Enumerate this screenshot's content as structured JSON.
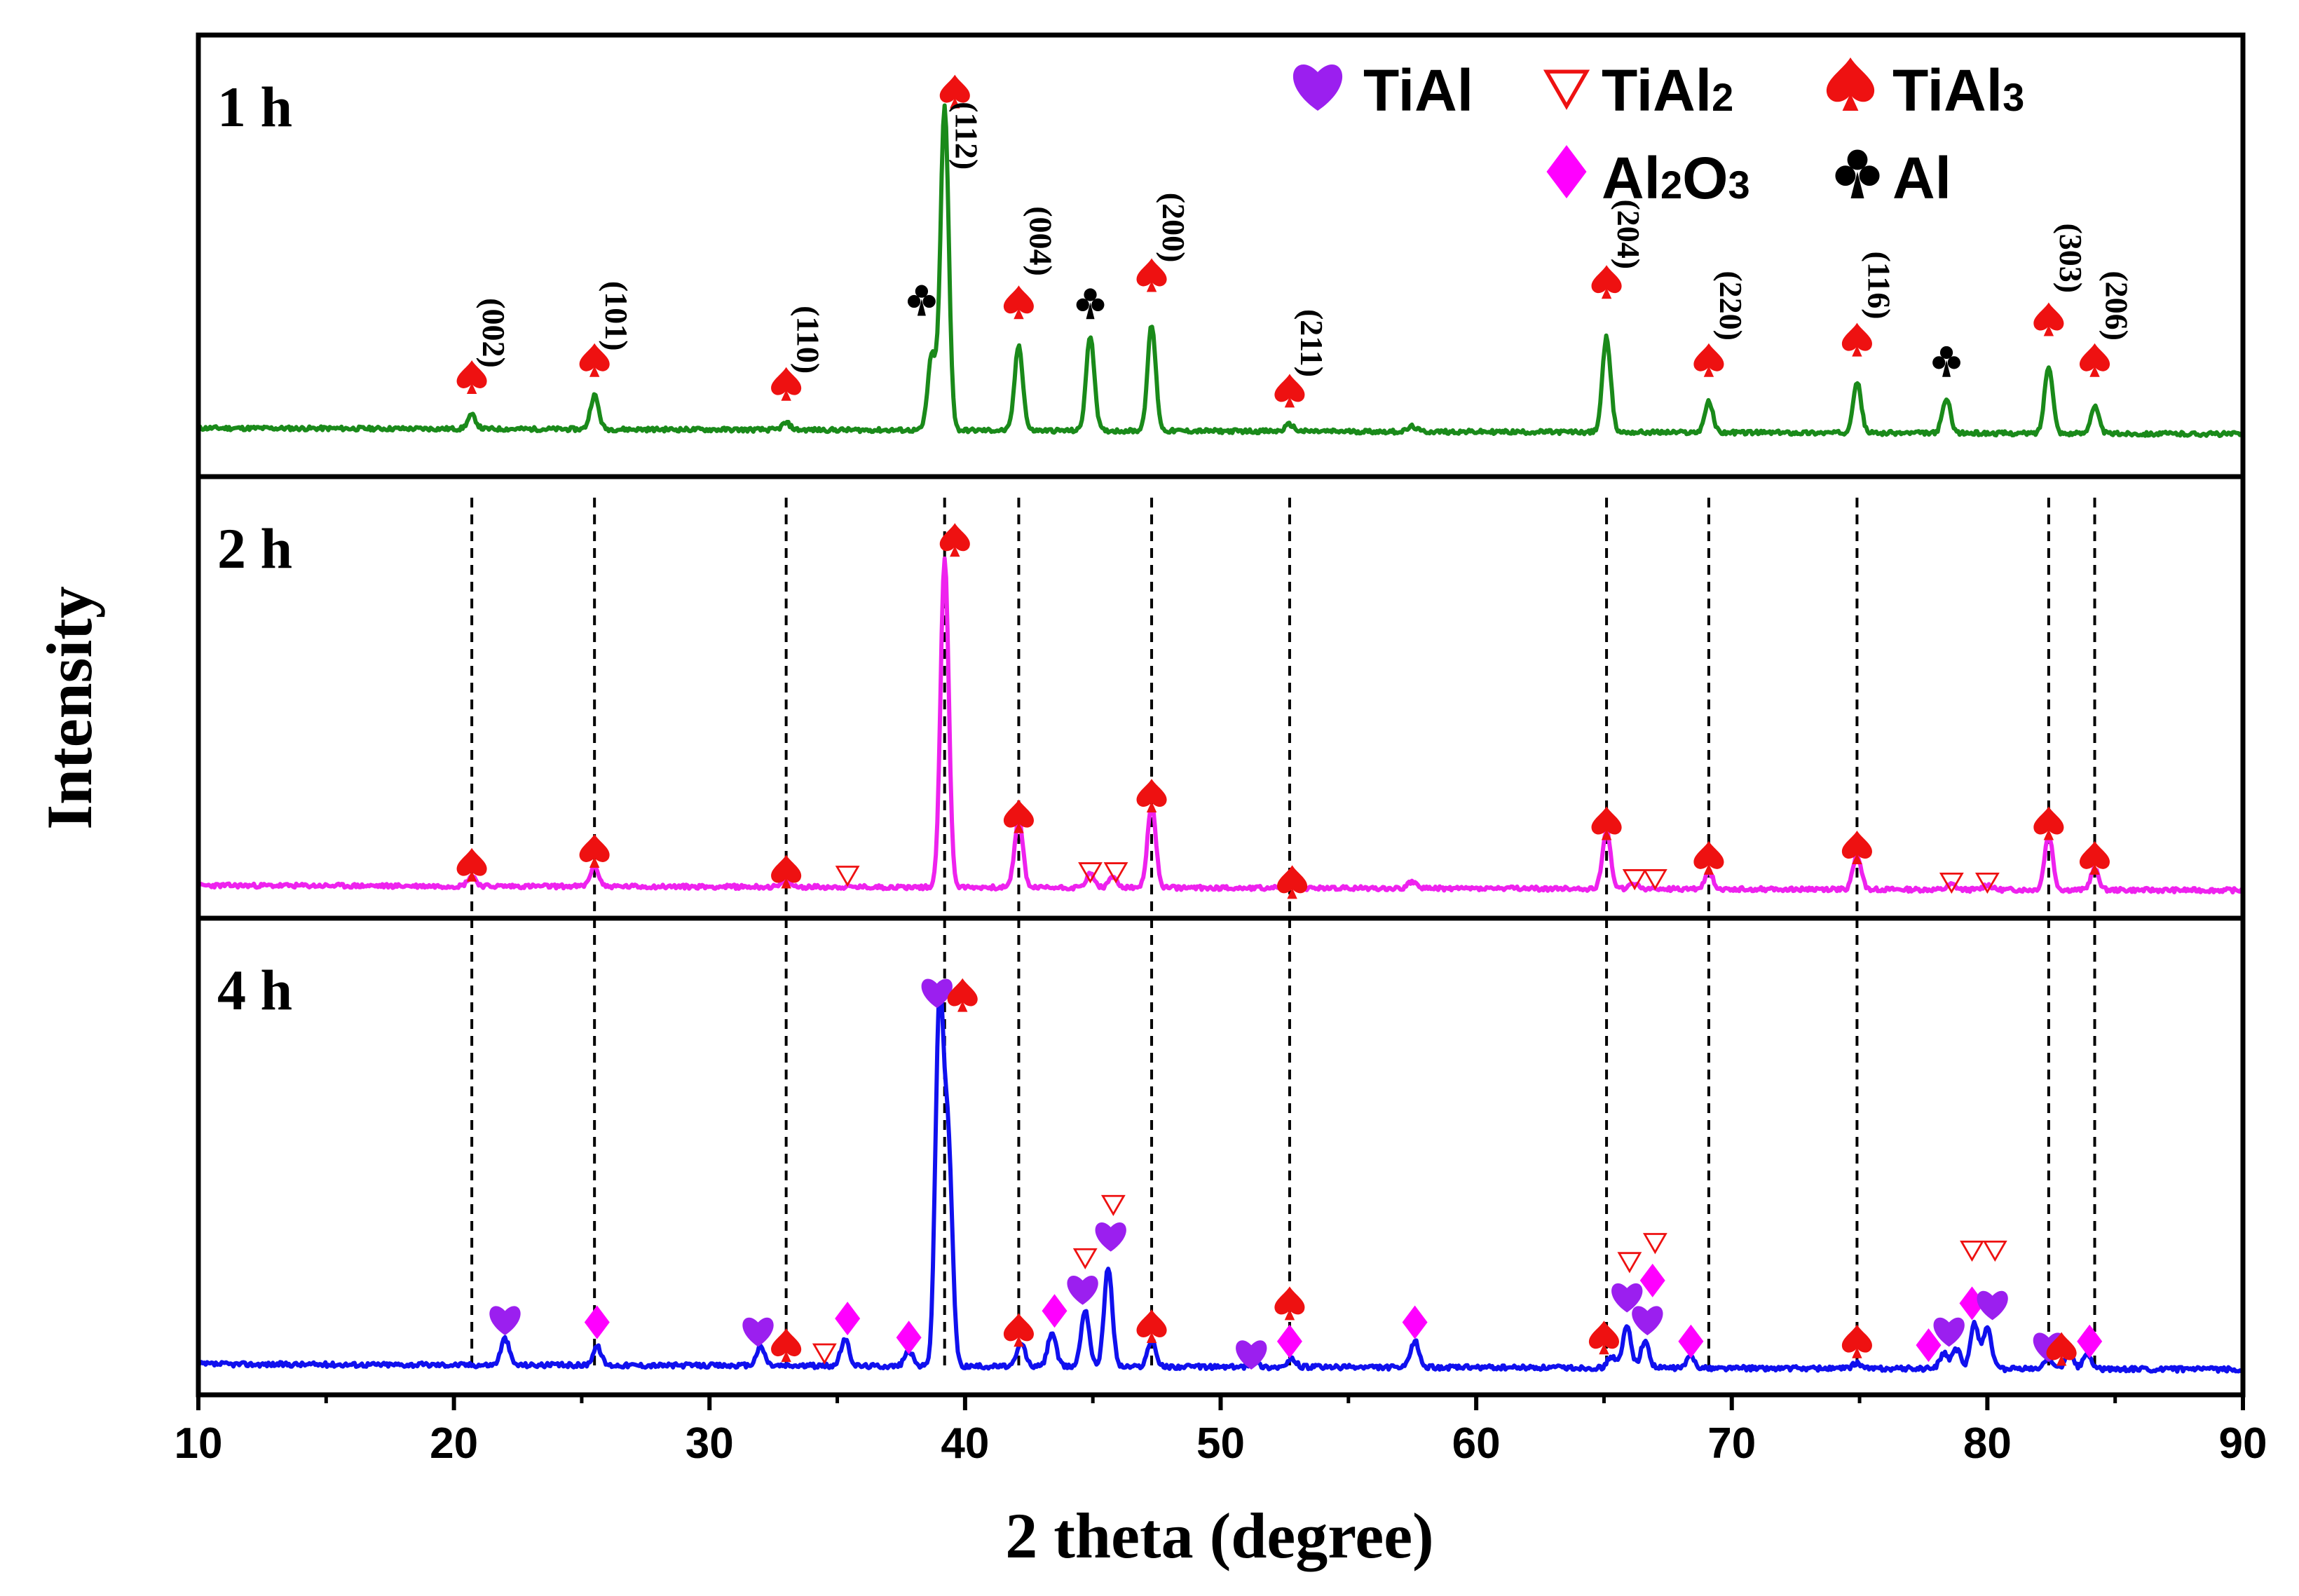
{
  "chart_data": {
    "type": "line",
    "title": "",
    "xlabel": "2 theta (degree)",
    "ylabel": "Intensity",
    "xlim": [
      10,
      90
    ],
    "xticks": [
      10,
      20,
      30,
      40,
      50,
      60,
      70,
      80,
      90
    ],
    "series": [
      {
        "name": "1 h",
        "color": "#1a8a1a",
        "baseline": 0.05,
        "noise_seed": 11,
        "peaks": [
          {
            "x": 20.7,
            "h": 0.04
          },
          {
            "x": 25.5,
            "h": 0.1
          },
          {
            "x": 33.0,
            "h": 0.02
          },
          {
            "x": 38.7,
            "h": 0.22
          },
          {
            "x": 39.2,
            "h": 0.95
          },
          {
            "x": 42.1,
            "h": 0.25
          },
          {
            "x": 44.9,
            "h": 0.28
          },
          {
            "x": 47.3,
            "h": 0.31
          },
          {
            "x": 52.7,
            "h": 0.02
          },
          {
            "x": 57.5,
            "h": 0.015
          },
          {
            "x": 65.1,
            "h": 0.28
          },
          {
            "x": 69.1,
            "h": 0.09
          },
          {
            "x": 74.9,
            "h": 0.15
          },
          {
            "x": 78.4,
            "h": 0.1
          },
          {
            "x": 82.4,
            "h": 0.2
          },
          {
            "x": 84.2,
            "h": 0.08
          }
        ]
      },
      {
        "name": "2 h",
        "color": "#ee22ee",
        "baseline": 0.04,
        "noise_seed": 23,
        "peaks": [
          {
            "x": 20.7,
            "h": 0.03
          },
          {
            "x": 25.5,
            "h": 0.06
          },
          {
            "x": 33.0,
            "h": 0.015
          },
          {
            "x": 39.2,
            "h": 0.95
          },
          {
            "x": 42.1,
            "h": 0.2
          },
          {
            "x": 44.9,
            "h": 0.04
          },
          {
            "x": 45.8,
            "h": 0.03
          },
          {
            "x": 47.3,
            "h": 0.24
          },
          {
            "x": 52.7,
            "h": 0.01
          },
          {
            "x": 57.5,
            "h": 0.02
          },
          {
            "x": 65.1,
            "h": 0.17
          },
          {
            "x": 66.2,
            "h": 0.015
          },
          {
            "x": 69.1,
            "h": 0.05
          },
          {
            "x": 74.9,
            "h": 0.1
          },
          {
            "x": 78.6,
            "h": 0.015
          },
          {
            "x": 80.0,
            "h": 0.015
          },
          {
            "x": 82.4,
            "h": 0.16
          },
          {
            "x": 84.2,
            "h": 0.06
          }
        ]
      },
      {
        "name": "4 h",
        "color": "#1010ee",
        "baseline": 0.04,
        "noise_seed": 37,
        "peaks": [
          {
            "x": 22.0,
            "h": 0.07
          },
          {
            "x": 25.6,
            "h": 0.05
          },
          {
            "x": 32.0,
            "h": 0.05
          },
          {
            "x": 35.3,
            "h": 0.07
          },
          {
            "x": 37.8,
            "h": 0.04
          },
          {
            "x": 39.0,
            "h": 0.95
          },
          {
            "x": 39.35,
            "h": 0.55
          },
          {
            "x": 42.2,
            "h": 0.06
          },
          {
            "x": 43.4,
            "h": 0.09
          },
          {
            "x": 44.7,
            "h": 0.15
          },
          {
            "x": 45.6,
            "h": 0.26
          },
          {
            "x": 47.3,
            "h": 0.07
          },
          {
            "x": 51.3,
            "h": 0.015
          },
          {
            "x": 52.8,
            "h": 0.02
          },
          {
            "x": 57.6,
            "h": 0.07
          },
          {
            "x": 65.3,
            "h": 0.03
          },
          {
            "x": 65.9,
            "h": 0.11
          },
          {
            "x": 66.6,
            "h": 0.07
          },
          {
            "x": 68.4,
            "h": 0.03
          },
          {
            "x": 74.9,
            "h": 0.015
          },
          {
            "x": 78.3,
            "h": 0.04
          },
          {
            "x": 78.8,
            "h": 0.05
          },
          {
            "x": 79.5,
            "h": 0.12
          },
          {
            "x": 80.0,
            "h": 0.11
          },
          {
            "x": 82.4,
            "h": 0.03
          },
          {
            "x": 83.2,
            "h": 0.04
          },
          {
            "x": 83.9,
            "h": 0.04
          }
        ]
      }
    ],
    "panel_labels": [
      "1 h",
      "2 h",
      "4 h"
    ],
    "reference_lines": [
      20.7,
      25.5,
      33.0,
      39.2,
      42.1,
      47.3,
      52.7,
      65.1,
      69.1,
      74.9,
      82.4,
      84.2
    ],
    "hkl_labels": [
      {
        "x": 20.7,
        "text": "(002)"
      },
      {
        "x": 25.5,
        "text": "(101)"
      },
      {
        "x": 33.0,
        "text": "(110)"
      },
      {
        "x": 39.2,
        "text": "(112)"
      },
      {
        "x": 42.1,
        "text": "(004)"
      },
      {
        "x": 47.3,
        "text": "(200)"
      },
      {
        "x": 52.7,
        "text": "(211)"
      },
      {
        "x": 65.1,
        "text": "(204)"
      },
      {
        "x": 69.1,
        "text": "(220)"
      },
      {
        "x": 74.9,
        "text": "(116)"
      },
      {
        "x": 82.4,
        "text": "(303)"
      },
      {
        "x": 84.2,
        "text": "(206)"
      }
    ],
    "phase_markers": {
      "1 h": [
        {
          "x": 20.7,
          "phase": "TiAl3",
          "y": 0.2
        },
        {
          "x": 25.5,
          "phase": "TiAl3",
          "y": 0.25
        },
        {
          "x": 33.0,
          "phase": "TiAl3",
          "y": 0.18
        },
        {
          "x": 38.3,
          "phase": "Al",
          "y": 0.43
        },
        {
          "x": 39.6,
          "phase": "TiAl3",
          "y": 1.04
        },
        {
          "x": 42.1,
          "phase": "TiAl3",
          "y": 0.42
        },
        {
          "x": 44.9,
          "phase": "Al",
          "y": 0.42
        },
        {
          "x": 47.3,
          "phase": "TiAl3",
          "y": 0.5
        },
        {
          "x": 52.7,
          "phase": "TiAl3",
          "y": 0.16
        },
        {
          "x": 65.1,
          "phase": "TiAl3",
          "y": 0.48
        },
        {
          "x": 69.1,
          "phase": "TiAl3",
          "y": 0.25
        },
        {
          "x": 74.9,
          "phase": "TiAl3",
          "y": 0.31
        },
        {
          "x": 78.4,
          "phase": "Al",
          "y": 0.25
        },
        {
          "x": 82.4,
          "phase": "TiAl3",
          "y": 0.37
        },
        {
          "x": 84.2,
          "phase": "TiAl3",
          "y": 0.25
        }
      ],
      "2 h": [
        {
          "x": 20.7,
          "phase": "TiAl3",
          "y": 0.1
        },
        {
          "x": 25.5,
          "phase": "TiAl3",
          "y": 0.14
        },
        {
          "x": 33.0,
          "phase": "TiAl3",
          "y": 0.08
        },
        {
          "x": 35.4,
          "phase": "TiAl2",
          "y": 0.07
        },
        {
          "x": 39.6,
          "phase": "TiAl3",
          "y": 1.04
        },
        {
          "x": 42.1,
          "phase": "TiAl3",
          "y": 0.24
        },
        {
          "x": 44.9,
          "phase": "TiAl2",
          "y": 0.08
        },
        {
          "x": 45.9,
          "phase": "TiAl2",
          "y": 0.08
        },
        {
          "x": 47.3,
          "phase": "TiAl3",
          "y": 0.3
        },
        {
          "x": 52.8,
          "phase": "TiAl3",
          "y": 0.05
        },
        {
          "x": 65.1,
          "phase": "TiAl3",
          "y": 0.22
        },
        {
          "x": 66.2,
          "phase": "TiAl2",
          "y": 0.06
        },
        {
          "x": 67.0,
          "phase": "TiAl2",
          "y": 0.06
        },
        {
          "x": 69.1,
          "phase": "TiAl3",
          "y": 0.12
        },
        {
          "x": 74.9,
          "phase": "TiAl3",
          "y": 0.15
        },
        {
          "x": 78.6,
          "phase": "TiAl2",
          "y": 0.05
        },
        {
          "x": 80.0,
          "phase": "TiAl2",
          "y": 0.05
        },
        {
          "x": 82.4,
          "phase": "TiAl3",
          "y": 0.22
        },
        {
          "x": 84.2,
          "phase": "TiAl3",
          "y": 0.12
        }
      ],
      "4 h": [
        {
          "x": 22.0,
          "phase": "TiAl",
          "y": 0.16
        },
        {
          "x": 25.6,
          "phase": "Al2O3",
          "y": 0.15
        },
        {
          "x": 31.9,
          "phase": "TiAl",
          "y": 0.13
        },
        {
          "x": 33.0,
          "phase": "TiAl3",
          "y": 0.09
        },
        {
          "x": 34.5,
          "phase": "TiAl2",
          "y": 0.07
        },
        {
          "x": 35.4,
          "phase": "Al2O3",
          "y": 0.16
        },
        {
          "x": 37.8,
          "phase": "Al2O3",
          "y": 0.11
        },
        {
          "x": 38.9,
          "phase": "TiAl",
          "y": 1.02
        },
        {
          "x": 39.9,
          "phase": "TiAl3",
          "y": 1.01
        },
        {
          "x": 42.1,
          "phase": "TiAl3",
          "y": 0.13
        },
        {
          "x": 43.5,
          "phase": "Al2O3",
          "y": 0.18
        },
        {
          "x": 44.6,
          "phase": "TiAl",
          "y": 0.24
        },
        {
          "x": 44.7,
          "phase": "TiAl2",
          "y": 0.32
        },
        {
          "x": 45.7,
          "phase": "TiAl",
          "y": 0.38
        },
        {
          "x": 45.8,
          "phase": "TiAl2",
          "y": 0.46
        },
        {
          "x": 47.3,
          "phase": "TiAl3",
          "y": 0.14
        },
        {
          "x": 51.2,
          "phase": "TiAl",
          "y": 0.07
        },
        {
          "x": 52.7,
          "phase": "Al2O3",
          "y": 0.1
        },
        {
          "x": 52.7,
          "phase": "TiAl3",
          "y": 0.2
        },
        {
          "x": 57.6,
          "phase": "Al2O3",
          "y": 0.15
        },
        {
          "x": 65.0,
          "phase": "TiAl3",
          "y": 0.11
        },
        {
          "x": 65.9,
          "phase": "TiAl",
          "y": 0.22
        },
        {
          "x": 66.0,
          "phase": "TiAl2",
          "y": 0.31
        },
        {
          "x": 66.7,
          "phase": "TiAl",
          "y": 0.16
        },
        {
          "x": 66.9,
          "phase": "Al2O3",
          "y": 0.26
        },
        {
          "x": 67.0,
          "phase": "TiAl2",
          "y": 0.36
        },
        {
          "x": 68.4,
          "phase": "Al2O3",
          "y": 0.1
        },
        {
          "x": 74.9,
          "phase": "TiAl3",
          "y": 0.1
        },
        {
          "x": 77.7,
          "phase": "Al2O3",
          "y": 0.09
        },
        {
          "x": 78.5,
          "phase": "TiAl",
          "y": 0.13
        },
        {
          "x": 79.4,
          "phase": "Al2O3",
          "y": 0.2
        },
        {
          "x": 80.2,
          "phase": "TiAl",
          "y": 0.2
        },
        {
          "x": 79.4,
          "phase": "TiAl2",
          "y": 0.34
        },
        {
          "x": 80.3,
          "phase": "TiAl2",
          "y": 0.34
        },
        {
          "x": 82.4,
          "phase": "TiAl",
          "y": 0.09
        },
        {
          "x": 82.9,
          "phase": "TiAl3",
          "y": 0.08
        },
        {
          "x": 84.0,
          "phase": "Al2O3",
          "y": 0.1
        }
      ]
    },
    "legend": [
      {
        "phase": "TiAl",
        "base": "TiAl",
        "sub": ""
      },
      {
        "phase": "TiAl2",
        "base": "TiAl",
        "sub": "2"
      },
      {
        "phase": "TiAl3",
        "base": "TiAl",
        "sub": "3"
      },
      {
        "phase": "Al2O3",
        "base": "Al2O3",
        "sub": ""
      },
      {
        "phase": "Al",
        "base": "Al",
        "sub": ""
      }
    ],
    "phase_colors": {
      "TiAl": "#9b1fef",
      "TiAl2": "#ee1111",
      "TiAl3": "#ee1111",
      "Al2O3": "#ff00ff",
      "Al": "#000000"
    },
    "legend_position": "top-right"
  }
}
